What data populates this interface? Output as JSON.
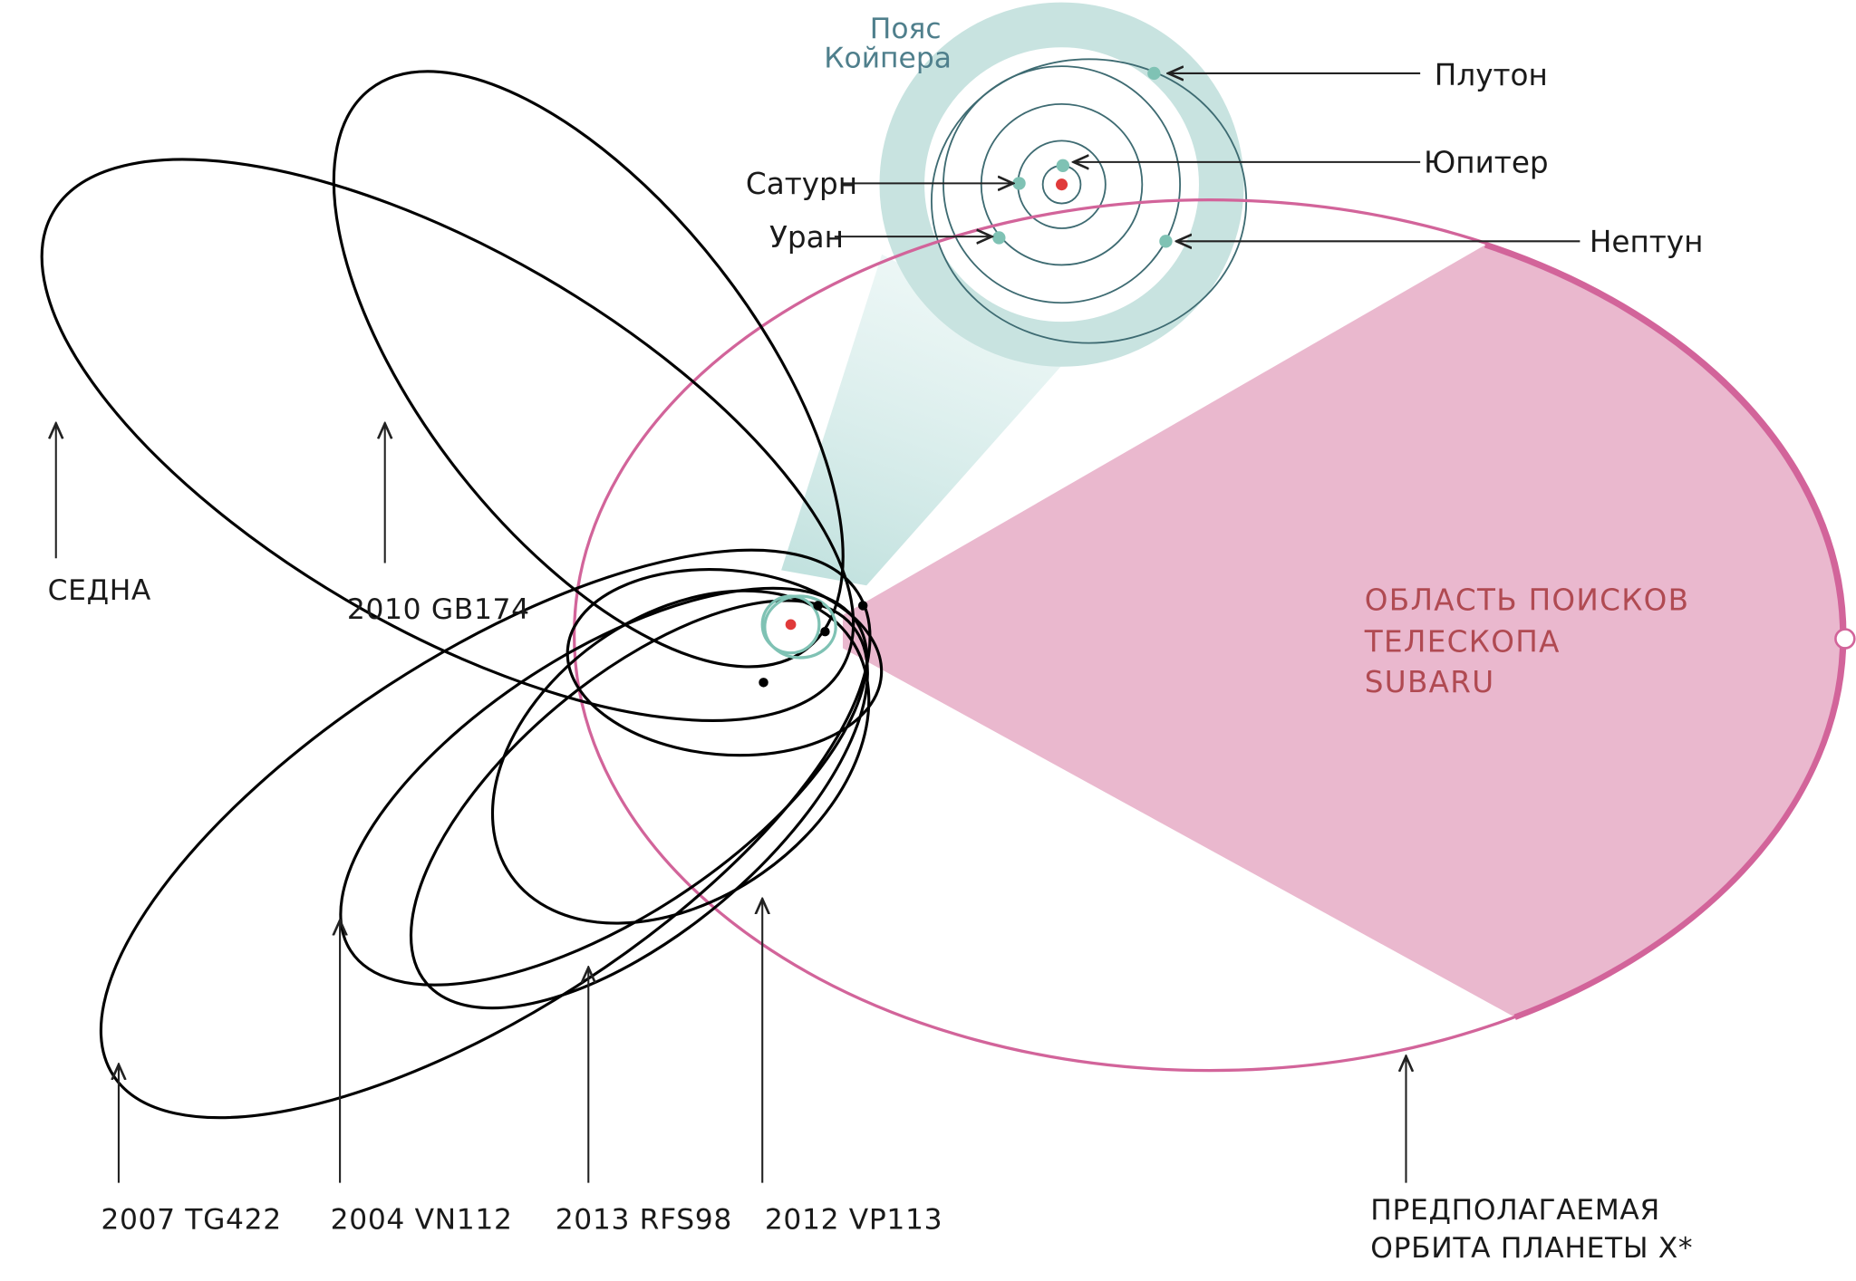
{
  "kuiper_belt": {
    "line1": "Пояс",
    "line2": "Койпера"
  },
  "planets": {
    "pluto": "Плутон",
    "jupiter": "Юпитер",
    "saturn": "Сатурн",
    "uranus": "Уран",
    "neptune": "Нептун"
  },
  "objects": {
    "sedna": "СЕДНА",
    "gb174": "2010 GB174",
    "tg422": "2007 TG422",
    "vn112": "2004 VN112",
    "rfs98": "2013 RFS98",
    "vp113": "2012 VP113"
  },
  "search_area": {
    "line1": "ОБЛАСТЬ ПОИСКОВ",
    "line2": "ТЕЛЕСКОПА",
    "line3": "SUBARU"
  },
  "planet_x_orbit": {
    "line1": "ПРЕДПОЛАГАЕМАЯ",
    "line2": "ОРБИТА ПЛАНЕТЫ X*"
  },
  "colors": {
    "planet_x_orbit": "#d2649a",
    "search_area": "#e9b4cb",
    "kuiper_belt": "#c8e3e0",
    "planet_dot": "#7fc2b4",
    "sun": "#e03a3a",
    "search_label": "#b04a52"
  }
}
